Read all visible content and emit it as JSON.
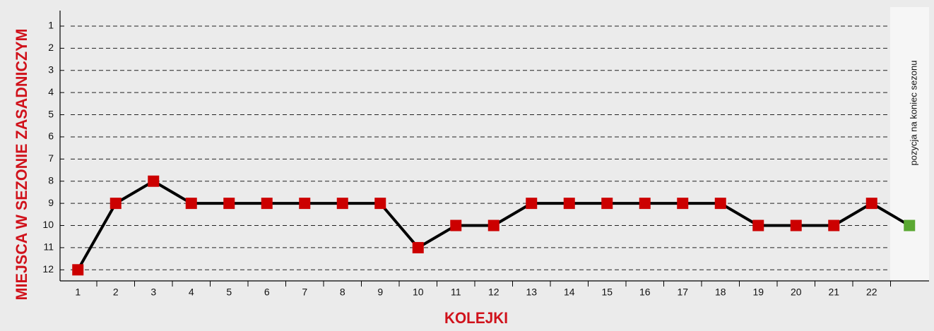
{
  "chart_data": {
    "type": "line",
    "ylabel": "MIEJSCA W SEZONIE ZASADNICZYM",
    "xlabel": "KOLEJKI",
    "side_note": "pozycja na koniec sezonu",
    "categories": [
      "1",
      "2",
      "3",
      "4",
      "5",
      "6",
      "7",
      "8",
      "9",
      "10",
      "11",
      "12",
      "13",
      "14",
      "15",
      "16",
      "17",
      "18",
      "19",
      "20",
      "21",
      "22",
      null
    ],
    "series": [
      {
        "color": "#000000",
        "marker_colors": [
          "#cc0000",
          "#cc0000",
          "#cc0000",
          "#cc0000",
          "#cc0000",
          "#cc0000",
          "#cc0000",
          "#cc0000",
          "#cc0000",
          "#cc0000",
          "#cc0000",
          "#cc0000",
          "#cc0000",
          "#cc0000",
          "#cc0000",
          "#cc0000",
          "#cc0000",
          "#cc0000",
          "#cc0000",
          "#cc0000",
          "#cc0000",
          "#cc0000",
          "#5aa832"
        ],
        "values": [
          12,
          9,
          8,
          9,
          9,
          9,
          9,
          9,
          9,
          11,
          10,
          10,
          9,
          9,
          9,
          9,
          9,
          9,
          10,
          10,
          10,
          9,
          10
        ]
      }
    ],
    "ylim": [
      12.5,
      0.3
    ],
    "yticks": [
      1,
      2,
      3,
      4,
      5,
      6,
      7,
      8,
      9,
      10,
      11,
      12
    ],
    "grid": true
  }
}
